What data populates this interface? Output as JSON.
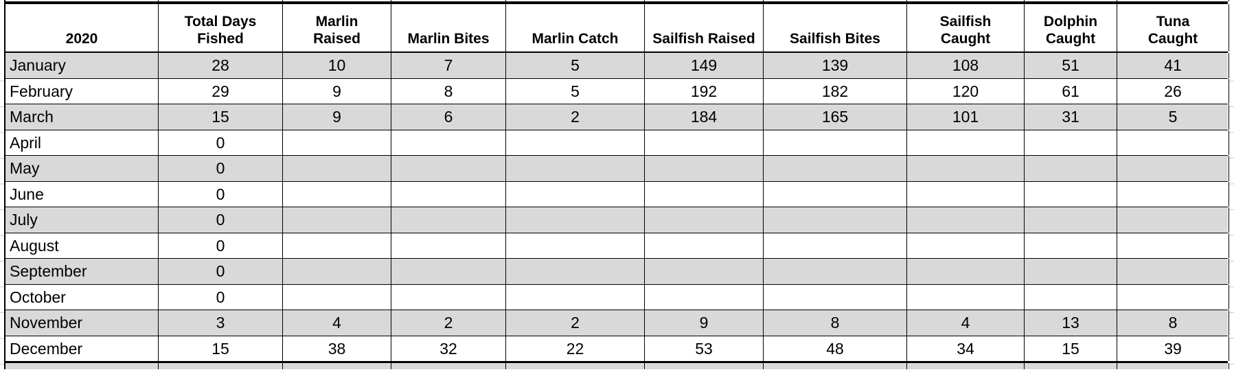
{
  "sheet": {
    "year_label": "2020",
    "columns": [
      "Total Days\nFished",
      "Marlin\nRaised",
      "Marlin Bites",
      "Marlin Catch",
      "Sailfish Raised",
      "Sailfish Bites",
      "Sailfish\nCaught",
      "Dolphin\nCaught",
      "Tuna\nCaught"
    ],
    "rows": [
      {
        "month": "January",
        "values": [
          "28",
          "10",
          "7",
          "5",
          "149",
          "139",
          "108",
          "51",
          "41"
        ]
      },
      {
        "month": "February",
        "values": [
          "29",
          "9",
          "8",
          "5",
          "192",
          "182",
          "120",
          "61",
          "26"
        ]
      },
      {
        "month": "March",
        "values": [
          "15",
          "9",
          "6",
          "2",
          "184",
          "165",
          "101",
          "31",
          "5"
        ]
      },
      {
        "month": "April",
        "values": [
          "0",
          "",
          "",
          "",
          "",
          "",
          "",
          "",
          ""
        ]
      },
      {
        "month": "May",
        "values": [
          "0",
          "",
          "",
          "",
          "",
          "",
          "",
          "",
          ""
        ]
      },
      {
        "month": "June",
        "values": [
          "0",
          "",
          "",
          "",
          "",
          "",
          "",
          "",
          ""
        ]
      },
      {
        "month": "July",
        "values": [
          "0",
          "",
          "",
          "",
          "",
          "",
          "",
          "",
          ""
        ]
      },
      {
        "month": "August",
        "values": [
          "0",
          "",
          "",
          "",
          "",
          "",
          "",
          "",
          ""
        ]
      },
      {
        "month": "September",
        "values": [
          "0",
          "",
          "",
          "",
          "",
          "",
          "",
          "",
          ""
        ]
      },
      {
        "month": "October",
        "values": [
          "0",
          "",
          "",
          "",
          "",
          "",
          "",
          "",
          ""
        ]
      },
      {
        "month": "November",
        "values": [
          "3",
          "4",
          "2",
          "2",
          "9",
          "8",
          "4",
          "13",
          "8"
        ]
      },
      {
        "month": "December",
        "values": [
          "15",
          "38",
          "32",
          "22",
          "53",
          "48",
          "34",
          "15",
          "39"
        ]
      }
    ]
  },
  "colors": {
    "stripe": "#d9d9d9",
    "row_white": "#ffffff",
    "border": "#000000",
    "gridline": "#c9c9c9",
    "text": "#000000",
    "background": "#ffffff"
  }
}
